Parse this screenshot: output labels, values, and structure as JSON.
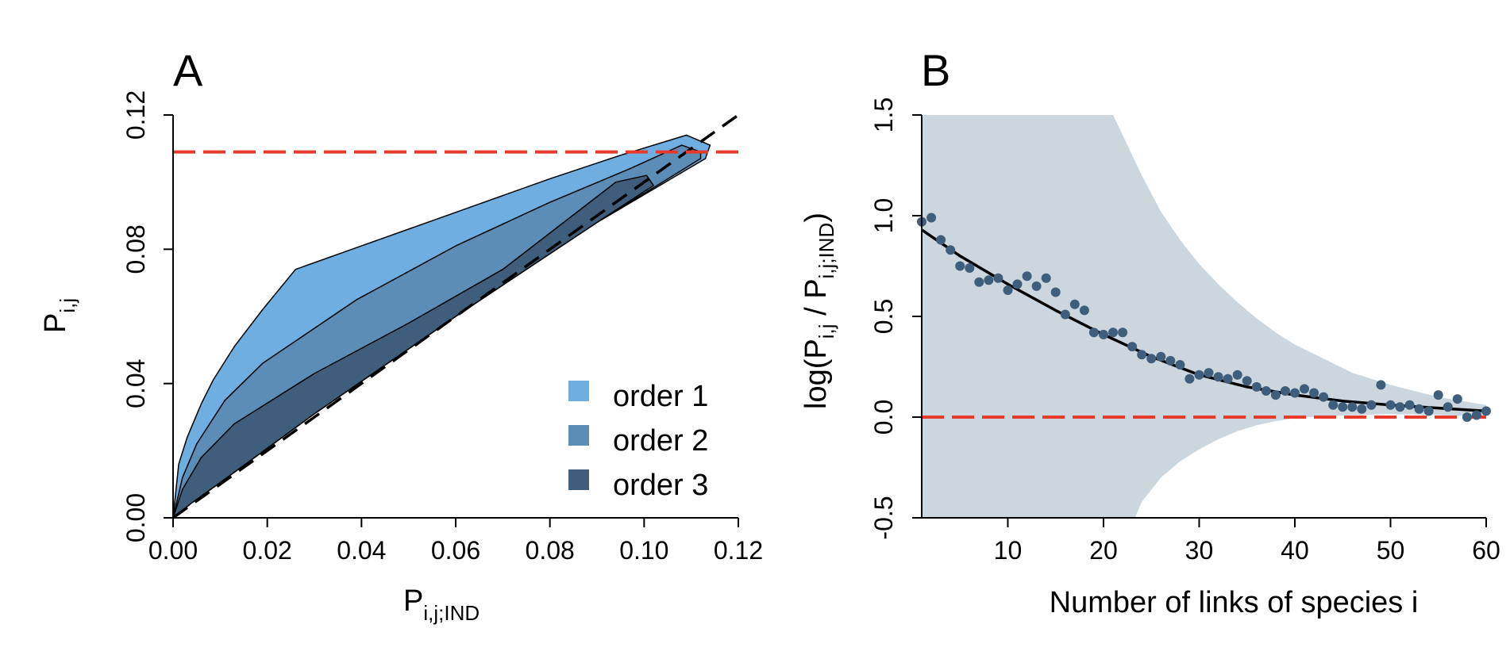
{
  "chart_data": [
    {
      "panel": "A",
      "type": "area",
      "xlabel_main": "P",
      "xlabel_sub": "i,j;IND",
      "ylabel_main": "P",
      "ylabel_sub": "i,j",
      "xlim": [
        0,
        0.12
      ],
      "ylim": [
        0,
        0.12
      ],
      "x_ticks": [
        0.0,
        0.02,
        0.04,
        0.06,
        0.08,
        0.1,
        0.12
      ],
      "x_tick_labels": [
        "0.00",
        "0.02",
        "0.04",
        "0.06",
        "0.08",
        "0.10",
        "0.12"
      ],
      "y_ticks": [
        0.0,
        0.04,
        0.08,
        0.12
      ],
      "y_tick_labels": [
        "0.00",
        "0.04",
        "0.08",
        "0.12"
      ],
      "grid": false,
      "legend_position": "bottom-right",
      "diagonal_line": {
        "x": [
          0,
          0.12
        ],
        "y": [
          0,
          0.12
        ],
        "color": "#000000",
        "style": "dashed"
      },
      "hline": {
        "y": 0.109,
        "color": "#e8392a",
        "style": "dashed"
      },
      "series": [
        {
          "name": "order 1",
          "color": "#6eaee0",
          "polygon": [
            [
              0,
              0
            ],
            [
              0.0012,
              0.016
            ],
            [
              0.003,
              0.024
            ],
            [
              0.006,
              0.034
            ],
            [
              0.0085,
              0.041
            ],
            [
              0.013,
              0.051
            ],
            [
              0.019,
              0.062
            ],
            [
              0.026,
              0.074
            ],
            [
              0.04,
              0.081
            ],
            [
              0.06,
              0.091
            ],
            [
              0.08,
              0.101
            ],
            [
              0.095,
              0.108
            ],
            [
              0.109,
              0.114
            ],
            [
              0.114,
              0.111
            ],
            [
              0.113,
              0.107
            ],
            [
              0.09,
              0.088
            ],
            [
              0.06,
              0.06
            ],
            [
              0.03,
              0.031
            ],
            [
              0.0105,
              0.011
            ],
            [
              0.004,
              0.0045
            ],
            [
              0,
              0
            ]
          ]
        },
        {
          "name": "order 2",
          "color": "#5b8db7",
          "polygon": [
            [
              0,
              0
            ],
            [
              0.002,
              0.012
            ],
            [
              0.005,
              0.022
            ],
            [
              0.011,
              0.035
            ],
            [
              0.019,
              0.046
            ],
            [
              0.039,
              0.065
            ],
            [
              0.06,
              0.081
            ],
            [
              0.08,
              0.094
            ],
            [
              0.097,
              0.104
            ],
            [
              0.108,
              0.111
            ],
            [
              0.112,
              0.109
            ],
            [
              0.112,
              0.107
            ],
            [
              0.09,
              0.088
            ],
            [
              0.06,
              0.06
            ],
            [
              0.03,
              0.031
            ],
            [
              0.0105,
              0.011
            ],
            [
              0.004,
              0.0045
            ],
            [
              0,
              0
            ]
          ]
        },
        {
          "name": "order 3",
          "color": "#3e5e7b",
          "polygon": [
            [
              0,
              0
            ],
            [
              0.002,
              0.0085
            ],
            [
              0.006,
              0.018
            ],
            [
              0.013,
              0.028
            ],
            [
              0.03,
              0.043
            ],
            [
              0.05,
              0.058
            ],
            [
              0.07,
              0.074
            ],
            [
              0.094,
              0.1
            ],
            [
              0.1005,
              0.102
            ],
            [
              0.102,
              0.099
            ],
            [
              0.09,
              0.088
            ],
            [
              0.06,
              0.06
            ],
            [
              0.03,
              0.031
            ],
            [
              0.0105,
              0.011
            ],
            [
              0.004,
              0.0045
            ],
            [
              0,
              0
            ]
          ]
        }
      ]
    },
    {
      "panel": "B",
      "type": "scatter",
      "xlabel": "Number of links of species i",
      "ylabel_prefix": "log(P",
      "ylabel_sub1": "i,j",
      "ylabel_mid": " / P",
      "ylabel_sub2": "i,j;IND",
      "ylabel_suffix": ")",
      "xlim": [
        1,
        60
      ],
      "ylim": [
        -0.5,
        1.5
      ],
      "x_ticks": [
        10,
        20,
        30,
        40,
        50,
        60
      ],
      "x_tick_labels": [
        "10",
        "20",
        "30",
        "40",
        "50",
        "60"
      ],
      "y_ticks": [
        -0.5,
        0.0,
        0.5,
        1.0,
        1.5
      ],
      "y_tick_labels": [
        "-0.5",
        "0.0",
        "0.5",
        "1.0",
        "1.5"
      ],
      "grid": false,
      "hline": {
        "y": 0.0,
        "color": "#e8392a",
        "style": "dashed"
      },
      "point_color": "#3e5e7b",
      "fit_color": "#000000",
      "band_color": "#cbd6de",
      "points": {
        "x": [
          1,
          2,
          3,
          4,
          5,
          6,
          7,
          8,
          9,
          10,
          11,
          12,
          13,
          14,
          15,
          16,
          17,
          18,
          19,
          20,
          21,
          22,
          23,
          24,
          25,
          26,
          27,
          28,
          29,
          30,
          31,
          32,
          33,
          34,
          35,
          36,
          37,
          38,
          39,
          40,
          41,
          42,
          43,
          44,
          45,
          46,
          47,
          48,
          49,
          50,
          51,
          52,
          53,
          54,
          55,
          56,
          57,
          58,
          59,
          60
        ],
        "y": [
          0.97,
          0.99,
          0.88,
          0.83,
          0.75,
          0.74,
          0.67,
          0.68,
          0.69,
          0.63,
          0.66,
          0.7,
          0.65,
          0.69,
          0.62,
          0.51,
          0.56,
          0.53,
          0.42,
          0.41,
          0.42,
          0.42,
          0.35,
          0.31,
          0.29,
          0.3,
          0.28,
          0.26,
          0.19,
          0.21,
          0.22,
          0.2,
          0.19,
          0.21,
          0.18,
          0.15,
          0.13,
          0.11,
          0.13,
          0.12,
          0.14,
          0.12,
          0.1,
          0.06,
          0.05,
          0.05,
          0.04,
          0.06,
          0.16,
          0.06,
          0.05,
          0.06,
          0.04,
          0.03,
          0.11,
          0.05,
          0.09,
          0.0,
          0.01,
          0.03
        ]
      },
      "fit_curve": {
        "x": [
          1,
          5,
          10,
          15,
          20,
          25,
          30,
          35,
          40,
          45,
          50,
          55,
          60
        ],
        "y": [
          0.93,
          0.8,
          0.66,
          0.53,
          0.41,
          0.3,
          0.21,
          0.15,
          0.11,
          0.08,
          0.06,
          0.045,
          0.03
        ]
      },
      "band_upper": {
        "x": [
          1,
          21,
          22,
          24,
          26,
          28,
          30,
          32,
          34,
          36,
          38,
          40,
          43,
          46,
          50,
          55,
          60
        ],
        "y": [
          1.5,
          1.5,
          1.4,
          1.2,
          1.02,
          0.88,
          0.76,
          0.66,
          0.57,
          0.49,
          0.42,
          0.36,
          0.29,
          0.22,
          0.16,
          0.1,
          0.06
        ]
      },
      "band_lower": {
        "x": [
          1,
          23.3,
          24,
          26,
          28,
          30,
          32,
          34,
          36,
          38,
          40,
          43,
          46,
          50,
          55,
          60
        ],
        "y": [
          -0.5,
          -0.5,
          -0.42,
          -0.3,
          -0.22,
          -0.16,
          -0.11,
          -0.07,
          -0.04,
          -0.02,
          -0.005,
          0.005,
          0.01,
          0.015,
          0.01,
          0.005
        ]
      }
    }
  ]
}
